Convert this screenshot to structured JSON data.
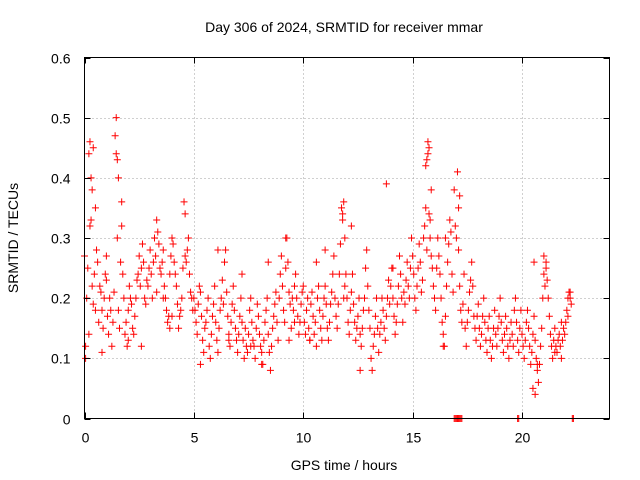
{
  "chart_data": {
    "type": "scatter",
    "title": "Day 306 of 2024, SRMTID for receiver mmar",
    "xlabel": "GPS time / hours",
    "ylabel": "SRMTID / TECUs",
    "xlim": [
      0,
      24
    ],
    "ylim": [
      0,
      0.6
    ],
    "xticks": [
      0,
      5,
      10,
      15,
      20
    ],
    "yticks": [
      0,
      0.1,
      0.2,
      0.3,
      0.4,
      0.5,
      0.6
    ],
    "xtick_labels": [
      "0",
      "5",
      "10",
      "15",
      "20"
    ],
    "ytick_labels": [
      "0",
      "0.1",
      "0.2",
      "0.3",
      "0.4",
      "0.5",
      "0.6"
    ],
    "grid": true,
    "marker": "plus",
    "series": [
      {
        "name": "SRMTID",
        "color": "#ff0000",
        "x": [
          0.0,
          0.05,
          0.1,
          0.15,
          0.2,
          0.25,
          0.3,
          0.35,
          0.4,
          0.45,
          0.5,
          0.55,
          0.6,
          0.65,
          0.7,
          0.75,
          0.8,
          0.85,
          0.9,
          0.95,
          1.0,
          1.05,
          1.1,
          1.15,
          1.2,
          1.25,
          1.3,
          1.35,
          1.4,
          1.45,
          1.5,
          1.55,
          1.6,
          1.65,
          1.7,
          1.75,
          1.8,
          1.85,
          1.9,
          1.95,
          2.0,
          2.05,
          2.1,
          2.15,
          2.2,
          2.25,
          2.3,
          2.35,
          2.4,
          2.45,
          2.5,
          2.55,
          2.6,
          2.65,
          2.7,
          2.75,
          2.8,
          2.85,
          2.9,
          2.95,
          3.0,
          3.05,
          3.1,
          3.15,
          3.2,
          3.25,
          3.3,
          3.35,
          3.4,
          3.45,
          3.5,
          3.55,
          3.6,
          3.65,
          3.7,
          3.75,
          3.8,
          3.85,
          3.9,
          3.95,
          4.0,
          4.05,
          4.1,
          4.15,
          4.2,
          4.25,
          4.3,
          4.35,
          4.4,
          4.45,
          4.5,
          4.55,
          4.6,
          4.65,
          4.7,
          4.75,
          4.8,
          4.85,
          4.9,
          4.95,
          0.3,
          0.35,
          0.4,
          1.45,
          1.5,
          1.55,
          0.05,
          0.5,
          1.0,
          2.0,
          3.3,
          4.0,
          4.6,
          0.25,
          3.6,
          1.7,
          0.2,
          0.8,
          2.6,
          3.9,
          5.0,
          5.05,
          5.1,
          5.15,
          5.2,
          5.25,
          5.3,
          5.35,
          5.4,
          5.45,
          5.5,
          5.55,
          5.6,
          5.65,
          5.7,
          5.75,
          5.8,
          5.85,
          5.9,
          5.95,
          6.0,
          6.05,
          6.1,
          6.15,
          6.2,
          6.25,
          6.3,
          6.35,
          6.4,
          6.45,
          6.5,
          6.55,
          6.6,
          6.65,
          6.7,
          6.75,
          6.8,
          6.85,
          6.9,
          6.95,
          7.0,
          7.05,
          7.1,
          7.15,
          7.2,
          7.25,
          7.3,
          7.35,
          7.4,
          7.45,
          7.5,
          7.55,
          7.6,
          7.65,
          7.7,
          7.75,
          7.8,
          7.85,
          7.9,
          7.95,
          8.0,
          8.05,
          8.1,
          8.15,
          8.2,
          8.25,
          8.3,
          8.35,
          8.4,
          8.45,
          8.5,
          8.55,
          8.6,
          8.65,
          8.7,
          8.75,
          8.8,
          8.85,
          8.9,
          8.95,
          9.0,
          9.05,
          9.1,
          9.15,
          9.2,
          9.25,
          9.3,
          9.35,
          9.4,
          9.45,
          9.5,
          9.55,
          9.6,
          9.65,
          9.7,
          9.75,
          9.8,
          9.85,
          9.9,
          9.95,
          5.3,
          6.1,
          6.6,
          7.2,
          7.6,
          8.1,
          8.4,
          9.2,
          9.35,
          9.6,
          10.0,
          10.05,
          10.1,
          10.15,
          10.2,
          10.25,
          10.3,
          10.35,
          10.4,
          10.45,
          10.5,
          10.55,
          10.6,
          10.65,
          10.7,
          10.75,
          10.8,
          10.85,
          10.9,
          10.95,
          11.0,
          11.05,
          11.1,
          11.15,
          11.2,
          11.25,
          11.3,
          11.35,
          11.4,
          11.45,
          11.5,
          11.55,
          11.6,
          11.65,
          11.7,
          11.75,
          11.8,
          11.85,
          11.9,
          11.95,
          12.0,
          12.05,
          12.1,
          12.15,
          12.2,
          12.25,
          12.3,
          12.35,
          12.4,
          12.45,
          12.5,
          12.55,
          12.6,
          12.65,
          12.7,
          12.75,
          12.8,
          12.85,
          12.9,
          12.95,
          13.0,
          13.05,
          13.1,
          13.15,
          13.2,
          13.25,
          13.3,
          13.35,
          13.4,
          13.45,
          13.5,
          13.55,
          13.6,
          13.65,
          13.7,
          13.75,
          13.8,
          13.85,
          13.9,
          13.95,
          14.0,
          14.05,
          14.1,
          14.15,
          14.2,
          14.25,
          14.3,
          14.35,
          14.4,
          14.45,
          14.5,
          14.55,
          14.6,
          14.65,
          14.7,
          14.75,
          14.8,
          14.85,
          14.9,
          14.95,
          11.8,
          11.85,
          11.9,
          12.2,
          10.6,
          13.8,
          14.1,
          12.6,
          11.0,
          10.3,
          15.0,
          15.05,
          15.1,
          15.15,
          15.2,
          15.25,
          15.3,
          15.35,
          15.4,
          15.45,
          15.5,
          15.55,
          15.6,
          15.65,
          15.7,
          15.75,
          15.8,
          15.85,
          15.9,
          15.95,
          16.0,
          16.05,
          16.1,
          16.15,
          16.2,
          16.25,
          16.3,
          16.35,
          16.4,
          16.45,
          16.5,
          16.55,
          16.6,
          16.65,
          16.7,
          16.75,
          16.8,
          16.85,
          16.9,
          16.95,
          17.0,
          17.05,
          17.1,
          17.15,
          17.2,
          17.25,
          17.3,
          17.35,
          17.4,
          17.45,
          17.5,
          17.55,
          17.6,
          17.65,
          17.7,
          17.75,
          17.8,
          17.85,
          17.9,
          17.95,
          18.0,
          18.05,
          18.1,
          18.15,
          18.2,
          18.25,
          18.3,
          18.35,
          18.4,
          18.45,
          18.5,
          18.55,
          18.6,
          18.65,
          18.7,
          18.75,
          18.8,
          18.85,
          18.9,
          18.95,
          19.0,
          19.05,
          19.1,
          19.15,
          19.2,
          19.25,
          19.3,
          19.35,
          19.4,
          19.45,
          19.5,
          19.55,
          19.6,
          19.65,
          19.7,
          19.75,
          19.8,
          19.85,
          19.9,
          19.95,
          15.6,
          15.65,
          15.7,
          15.75,
          15.8,
          16.4,
          16.5,
          17.1,
          17.15,
          15.85,
          20.0,
          20.05,
          20.1,
          20.15,
          20.2,
          20.25,
          20.3,
          20.35,
          20.4,
          20.45,
          20.5,
          20.55,
          20.6,
          20.65,
          20.7,
          20.75,
          20.8,
          20.85,
          20.9,
          20.95,
          21.0,
          21.05,
          21.1,
          21.15,
          21.2,
          21.25,
          21.3,
          21.35,
          21.4,
          21.45,
          21.5,
          21.55,
          21.6,
          21.65,
          21.7,
          21.75,
          21.8,
          21.85,
          21.9,
          21.95,
          22.0,
          22.05,
          22.1,
          22.15,
          22.2,
          22.25,
          20.5,
          20.6,
          20.7,
          21.0,
          21.1,
          20.55,
          21.5,
          21.8,
          22.1,
          22.2,
          16.9,
          16.95,
          17.0,
          17.05,
          17.1,
          17.15,
          17.2,
          17.25,
          19.8,
          19.85,
          22.3,
          22.35
        ],
        "y": [
          0.27,
          0.12,
          0.2,
          0.25,
          0.44,
          0.46,
          0.33,
          0.22,
          0.19,
          0.24,
          0.18,
          0.28,
          0.26,
          0.16,
          0.22,
          0.21,
          0.18,
          0.15,
          0.2,
          0.24,
          0.23,
          0.17,
          0.14,
          0.2,
          0.18,
          0.12,
          0.16,
          0.21,
          0.47,
          0.5,
          0.3,
          0.18,
          0.15,
          0.26,
          0.32,
          0.24,
          0.2,
          0.14,
          0.16,
          0.12,
          0.18,
          0.22,
          0.2,
          0.19,
          0.15,
          0.14,
          0.17,
          0.2,
          0.23,
          0.24,
          0.27,
          0.22,
          0.25,
          0.29,
          0.26,
          0.2,
          0.19,
          0.23,
          0.22,
          0.25,
          0.28,
          0.24,
          0.2,
          0.26,
          0.3,
          0.27,
          0.33,
          0.31,
          0.29,
          0.25,
          0.24,
          0.26,
          0.28,
          0.22,
          0.2,
          0.18,
          0.16,
          0.17,
          0.24,
          0.27,
          0.3,
          0.29,
          0.26,
          0.24,
          0.22,
          0.19,
          0.15,
          0.17,
          0.18,
          0.2,
          0.25,
          0.36,
          0.27,
          0.26,
          0.28,
          0.3,
          0.24,
          0.21,
          0.2,
          0.18,
          0.4,
          0.38,
          0.45,
          0.44,
          0.43,
          0.4,
          0.1,
          0.35,
          0.27,
          0.13,
          0.21,
          0.17,
          0.34,
          0.32,
          0.2,
          0.36,
          0.14,
          0.11,
          0.12,
          0.15,
          0.2,
          0.18,
          0.16,
          0.14,
          0.19,
          0.22,
          0.21,
          0.17,
          0.13,
          0.11,
          0.15,
          0.16,
          0.18,
          0.2,
          0.12,
          0.1,
          0.14,
          0.17,
          0.19,
          0.22,
          0.16,
          0.13,
          0.11,
          0.15,
          0.18,
          0.2,
          0.23,
          0.19,
          0.26,
          0.28,
          0.21,
          0.17,
          0.14,
          0.12,
          0.16,
          0.19,
          0.22,
          0.18,
          0.15,
          0.13,
          0.11,
          0.14,
          0.17,
          0.2,
          0.16,
          0.13,
          0.1,
          0.15,
          0.12,
          0.11,
          0.14,
          0.18,
          0.2,
          0.16,
          0.13,
          0.12,
          0.1,
          0.15,
          0.19,
          0.17,
          0.14,
          0.12,
          0.11,
          0.09,
          0.13,
          0.16,
          0.18,
          0.2,
          0.14,
          0.11,
          0.08,
          0.12,
          0.15,
          0.17,
          0.19,
          0.21,
          0.16,
          0.13,
          0.2,
          0.24,
          0.27,
          0.22,
          0.18,
          0.16,
          0.25,
          0.3,
          0.26,
          0.21,
          0.19,
          0.15,
          0.2,
          0.18,
          0.22,
          0.24,
          0.2,
          0.17,
          0.14,
          0.16,
          0.19,
          0.21,
          0.09,
          0.28,
          0.13,
          0.24,
          0.12,
          0.09,
          0.26,
          0.3,
          0.13,
          0.16,
          0.22,
          0.16,
          0.14,
          0.18,
          0.2,
          0.15,
          0.13,
          0.19,
          0.21,
          0.17,
          0.14,
          0.16,
          0.12,
          0.2,
          0.22,
          0.18,
          0.15,
          0.13,
          0.17,
          0.2,
          0.22,
          0.19,
          0.15,
          0.13,
          0.16,
          0.19,
          0.21,
          0.24,
          0.27,
          0.2,
          0.17,
          0.15,
          0.19,
          0.24,
          0.29,
          0.35,
          0.33,
          0.2,
          0.22,
          0.24,
          0.2,
          0.16,
          0.14,
          0.18,
          0.21,
          0.24,
          0.19,
          0.16,
          0.13,
          0.15,
          0.17,
          0.2,
          0.14,
          0.12,
          0.15,
          0.18,
          0.2,
          0.25,
          0.28,
          0.22,
          0.18,
          0.15,
          0.1,
          0.08,
          0.12,
          0.14,
          0.17,
          0.2,
          0.15,
          0.11,
          0.14,
          0.16,
          0.2,
          0.18,
          0.15,
          0.13,
          0.17,
          0.2,
          0.23,
          0.19,
          0.22,
          0.25,
          0.2,
          0.17,
          0.14,
          0.16,
          0.19,
          0.22,
          0.27,
          0.24,
          0.2,
          0.16,
          0.21,
          0.19,
          0.23,
          0.26,
          0.22,
          0.2,
          0.25,
          0.3,
          0.34,
          0.36,
          0.3,
          0.32,
          0.26,
          0.39,
          0.25,
          0.08,
          0.28,
          0.13,
          0.27,
          0.24,
          0.2,
          0.18,
          0.22,
          0.25,
          0.29,
          0.26,
          0.21,
          0.23,
          0.3,
          0.32,
          0.35,
          0.28,
          0.46,
          0.45,
          0.3,
          0.27,
          0.25,
          0.22,
          0.2,
          0.18,
          0.25,
          0.3,
          0.27,
          0.24,
          0.2,
          0.16,
          0.14,
          0.12,
          0.17,
          0.22,
          0.26,
          0.29,
          0.33,
          0.31,
          0.24,
          0.21,
          0.38,
          0.32,
          0.3,
          0.41,
          0.28,
          0.22,
          0.18,
          0.16,
          0.19,
          0.24,
          0.15,
          0.12,
          0.16,
          0.18,
          0.21,
          0.23,
          0.26,
          0.22,
          0.17,
          0.15,
          0.13,
          0.17,
          0.19,
          0.15,
          0.12,
          0.14,
          0.17,
          0.2,
          0.16,
          0.13,
          0.11,
          0.15,
          0.17,
          0.13,
          0.1,
          0.12,
          0.15,
          0.18,
          0.14,
          0.12,
          0.15,
          0.17,
          0.2,
          0.16,
          0.13,
          0.11,
          0.14,
          0.17,
          0.15,
          0.12,
          0.1,
          0.13,
          0.16,
          0.14,
          0.12,
          0.18,
          0.2,
          0.16,
          0.13,
          0.11,
          0.15,
          0.18,
          0.42,
          0.43,
          0.44,
          0.34,
          0.33,
          0.12,
          0.3,
          0.35,
          0.37,
          0.38,
          0.14,
          0.12,
          0.1,
          0.13,
          0.16,
          0.18,
          0.15,
          0.12,
          0.09,
          0.11,
          0.14,
          0.17,
          0.13,
          0.1,
          0.08,
          0.06,
          0.09,
          0.12,
          0.15,
          0.2,
          0.24,
          0.22,
          0.26,
          0.23,
          0.2,
          0.17,
          0.14,
          0.12,
          0.1,
          0.13,
          0.15,
          0.12,
          0.11,
          0.13,
          0.14,
          0.12,
          0.1,
          0.13,
          0.15,
          0.14,
          0.16,
          0.18,
          0.2,
          0.21,
          0.2,
          0.19,
          0.05,
          0.04,
          0.09,
          0.27,
          0.25,
          0.26,
          0.11,
          0.16,
          0.17,
          0.21,
          0.0,
          0.0,
          0.0,
          0.0,
          0.0,
          0.0,
          0.0,
          0.0,
          0.0,
          0.0,
          0.0,
          0.0
        ]
      }
    ]
  }
}
